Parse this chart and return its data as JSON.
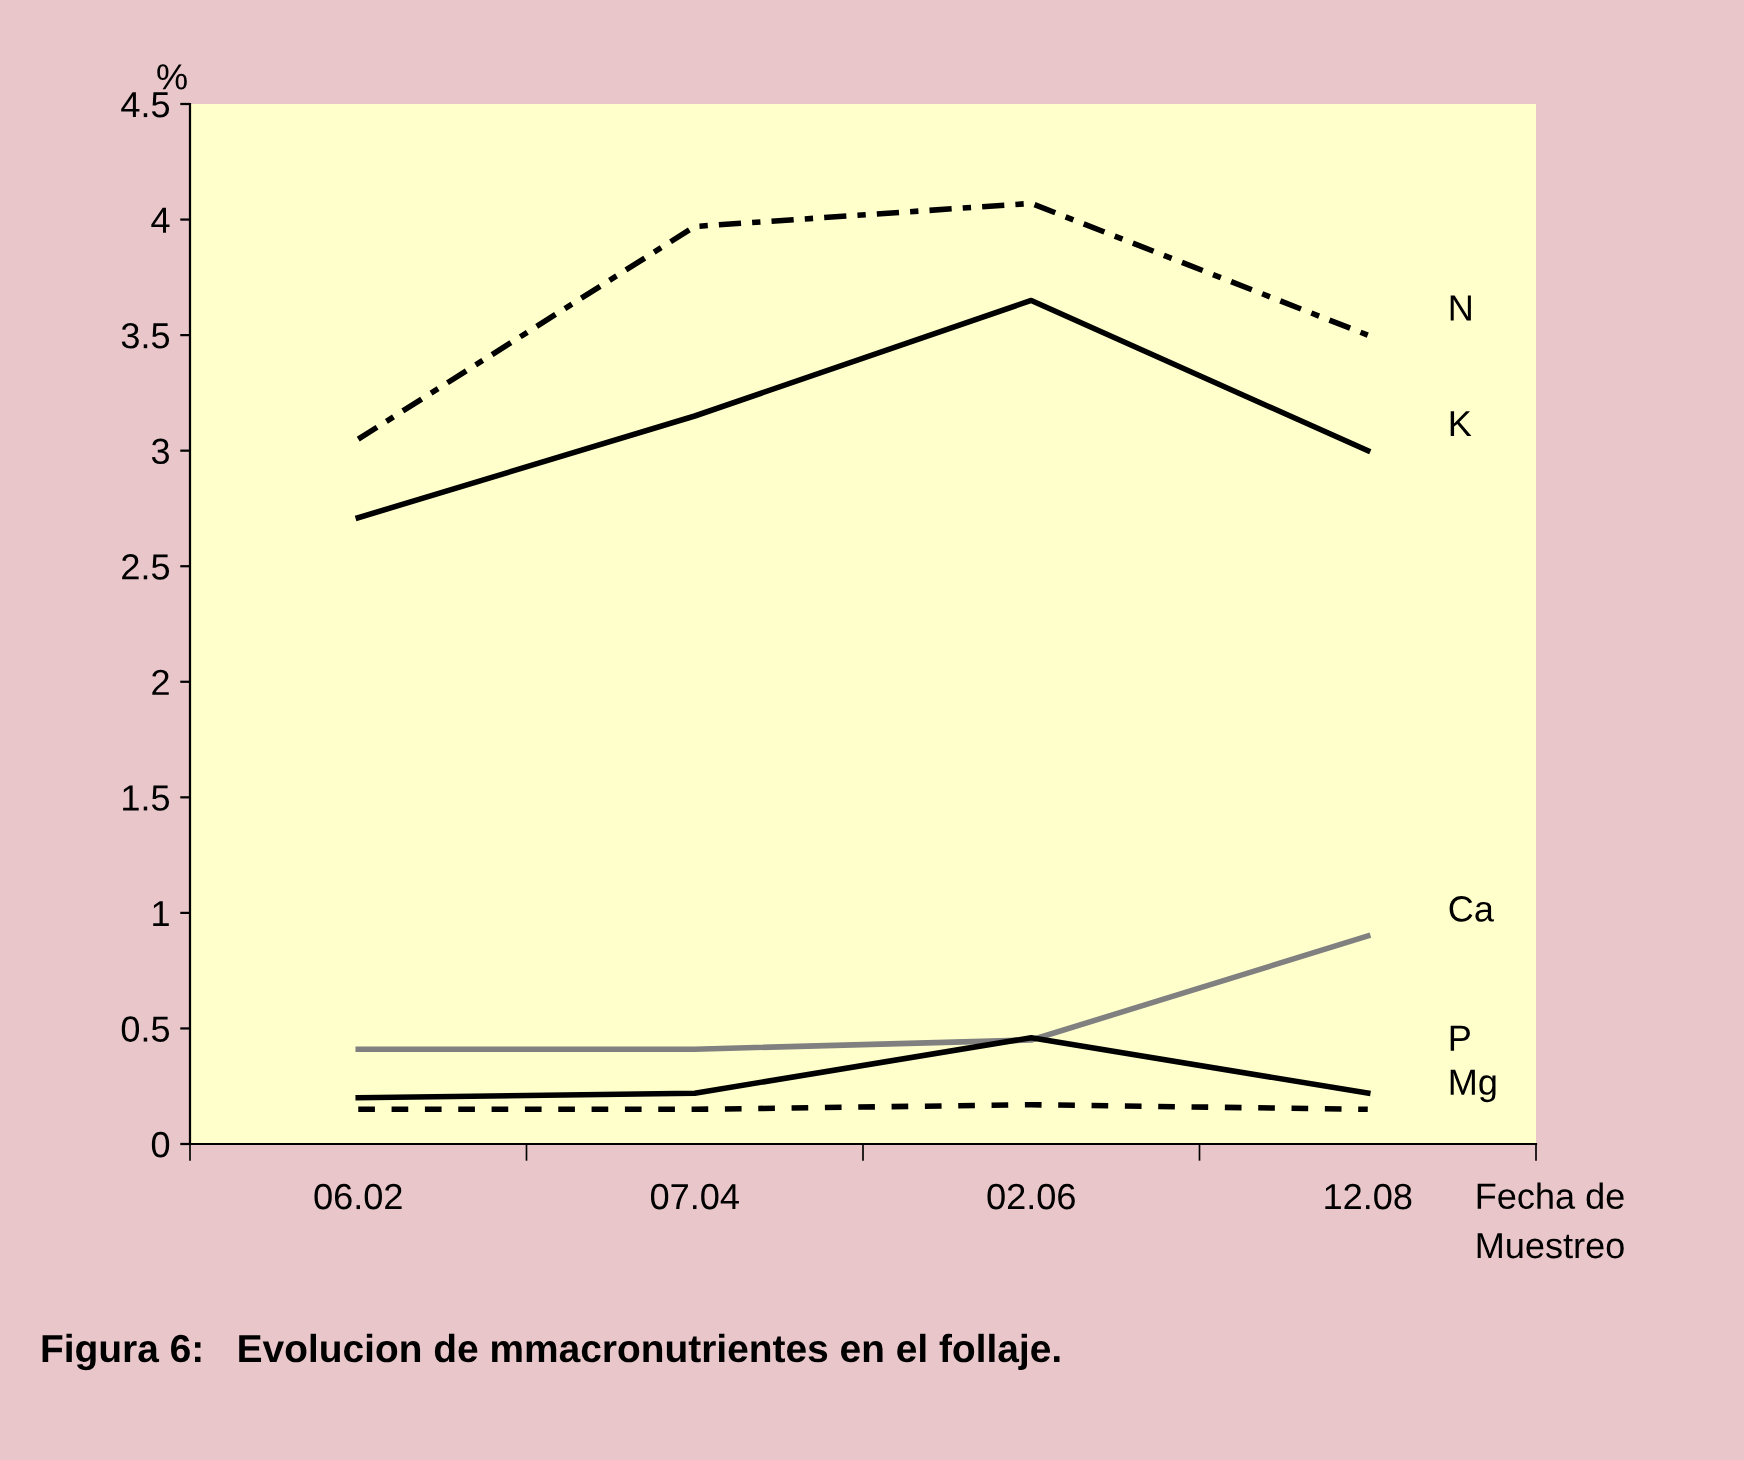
{
  "chart_data": {
    "type": "line",
    "title": "Figura 6:   Evolucion de mmacronutrientes en el follaje.",
    "ylabel": "%",
    "xlabel": "Fecha de\nMuestreo",
    "categories": [
      "06.02",
      "07.04",
      "02.06",
      "12.08"
    ],
    "ylim": [
      0,
      4.5
    ],
    "yticks": [
      0,
      0.5,
      1,
      1.5,
      2,
      2.5,
      3,
      3.5,
      4,
      4.5
    ],
    "grid": false,
    "legend": false,
    "marker": "none",
    "series": [
      {
        "name": "N",
        "color": "#000000",
        "line_style": "dashdot",
        "values": [
          3.05,
          3.97,
          4.07,
          3.5
        ]
      },
      {
        "name": "K",
        "color": "#000000",
        "line_style": "solid",
        "values": [
          2.71,
          3.15,
          3.65,
          3.0
        ]
      },
      {
        "name": "Ca",
        "color": "#808080",
        "line_style": "solid",
        "values": [
          0.41,
          0.41,
          0.45,
          0.9
        ]
      },
      {
        "name": "P",
        "color": "#000000",
        "line_style": "solid",
        "values": [
          0.2,
          0.22,
          0.46,
          0.22
        ]
      },
      {
        "name": "Mg",
        "color": "#000000",
        "line_style": "dotted",
        "values": [
          0.15,
          0.15,
          0.17,
          0.15
        ]
      }
    ]
  }
}
